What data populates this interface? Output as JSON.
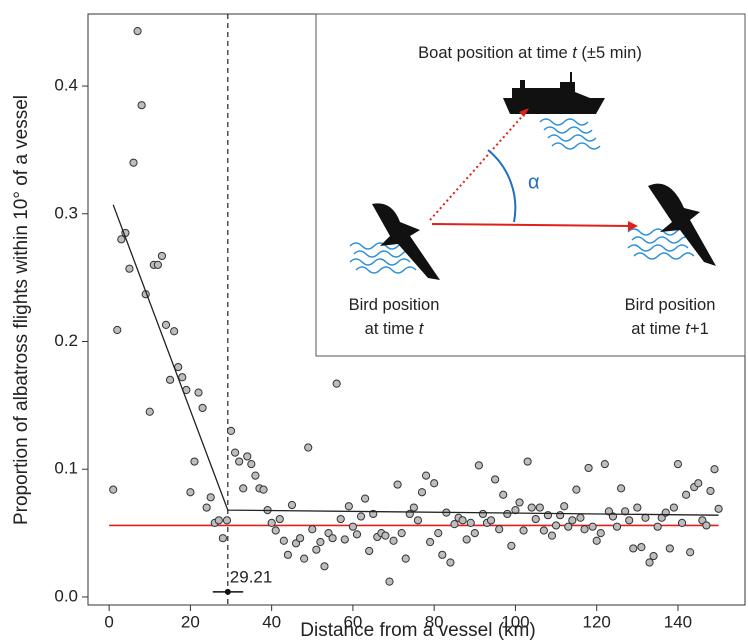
{
  "chart_data": {
    "type": "scatter",
    "xlabel": "Distance from a vessel (km)",
    "ylabel": "Proportion of albatross flights within 10° of a vessel",
    "xlim": [
      -5.2,
      156.5
    ],
    "ylim": [
      -0.0063,
      0.4564
    ],
    "xticks": [
      0,
      20,
      40,
      60,
      80,
      100,
      120,
      140
    ],
    "yticks": [
      {
        "value": 0,
        "label": "0.0"
      },
      0.1,
      0.2,
      0.3,
      0.4
    ],
    "marker_color": "#bdbdbd",
    "x": [
      1,
      2,
      3,
      4,
      5,
      6,
      7,
      8,
      9,
      10,
      11,
      12,
      13,
      14,
      15,
      16,
      17,
      18,
      19,
      20,
      21,
      22,
      23,
      24,
      25,
      26,
      27,
      28,
      29,
      30,
      31,
      32,
      33,
      34,
      35,
      36,
      37,
      38,
      39,
      40,
      41,
      42,
      43,
      44,
      45,
      46,
      47,
      48,
      49,
      50,
      51,
      52,
      53,
      54,
      55,
      56,
      57,
      58,
      59,
      60,
      61,
      62,
      63,
      64,
      65,
      66,
      67,
      68,
      69,
      70,
      71,
      72,
      73,
      74,
      75,
      76,
      77,
      78,
      79,
      80,
      81,
      82,
      83,
      84,
      85,
      86,
      87,
      88,
      89,
      90,
      91,
      92,
      93,
      94,
      95,
      96,
      97,
      98,
      99,
      100,
      101,
      102,
      103,
      104,
      105,
      106,
      107,
      108,
      109,
      110,
      111,
      112,
      113,
      114,
      115,
      116,
      117,
      118,
      119,
      120,
      121,
      122,
      123,
      124,
      125,
      126,
      127,
      128,
      129,
      130,
      131,
      132,
      133,
      134,
      135,
      136,
      137,
      138,
      139,
      140,
      141,
      142,
      143,
      144,
      145,
      146,
      147,
      148,
      149,
      150
    ],
    "values": [
      0.084,
      0.209,
      0.28,
      0.285,
      0.257,
      0.34,
      0.443,
      0.385,
      0.237,
      0.145,
      0.26,
      0.26,
      0.267,
      0.213,
      0.17,
      0.208,
      0.18,
      0.172,
      0.162,
      0.082,
      0.106,
      0.16,
      0.148,
      0.07,
      0.078,
      0.058,
      0.06,
      0.046,
      0.06,
      0.13,
      0.113,
      0.106,
      0.085,
      0.11,
      0.104,
      0.095,
      0.085,
      0.084,
      0.068,
      0.058,
      0.052,
      0.061,
      0.044,
      0.033,
      0.072,
      0.042,
      0.046,
      0.03,
      0.117,
      0.053,
      0.037,
      0.043,
      0.024,
      0.05,
      0.046,
      0.167,
      0.061,
      0.045,
      0.071,
      0.055,
      0.049,
      0.063,
      0.077,
      0.036,
      0.065,
      0.047,
      0.05,
      0.048,
      0.012,
      0.044,
      0.088,
      0.05,
      0.03,
      0.065,
      0.07,
      0.06,
      0.082,
      0.095,
      0.043,
      0.089,
      0.05,
      0.033,
      0.066,
      0.027,
      0.057,
      0.062,
      0.06,
      0.045,
      0.058,
      0.05,
      0.103,
      0.065,
      0.058,
      0.06,
      0.092,
      0.053,
      0.08,
      0.065,
      0.04,
      0.068,
      0.074,
      0.052,
      0.106,
      0.07,
      0.061,
      0.07,
      0.052,
      0.064,
      0.048,
      0.056,
      0.064,
      0.071,
      0.055,
      0.06,
      0.084,
      0.062,
      0.053,
      0.101,
      0.055,
      0.044,
      0.05,
      0.104,
      0.067,
      0.063,
      0.055,
      0.085,
      0.067,
      0.06,
      0.038,
      0.07,
      0.039,
      0.062,
      0.027,
      0.032,
      0.055,
      0.062,
      0.066,
      0.038,
      0.07,
      0.104,
      0.058,
      0.08,
      0.035,
      0.086,
      0.089,
      0.06,
      0.056,
      0.083,
      0.1,
      0.069
    ],
    "fit": {
      "x": [
        1,
        29.21,
        150
      ],
      "y": [
        0.307,
        0.068,
        0.064
      ],
      "color": "#222222"
    },
    "baseline": {
      "value": 0.056,
      "x": [
        0,
        150
      ],
      "color": "#e0201b"
    },
    "breakpoint": 29.21,
    "breakpoint_ci": [
      25.5,
      33
    ],
    "breakpoint_y": 0.004
  },
  "inset": {
    "boat_label": [
      "Boat position at time ",
      "t",
      " (±5 min)"
    ],
    "angle": "α",
    "bird_start": [
      "Bird position",
      "at time ",
      "t"
    ],
    "bird_end": [
      "Bird position",
      "at time ",
      "t",
      "+1"
    ]
  }
}
